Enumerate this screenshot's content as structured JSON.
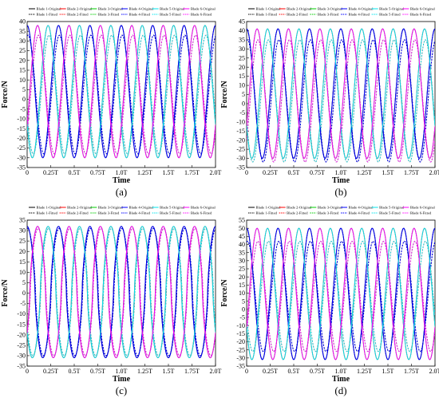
{
  "chart_data": [
    {
      "panel": "(a)",
      "type": "line",
      "xlabel": "Time",
      "ylabel": "Force/N",
      "ylim": [
        -35,
        40
      ],
      "yticks": [
        -35,
        -30,
        -25,
        -20,
        -15,
        -10,
        -5,
        0,
        5,
        10,
        15,
        20,
        25,
        30,
        35,
        40
      ],
      "xticks": [
        "0",
        "0.25T",
        "0.5T",
        "0.75T",
        "1.0T",
        "1.25T",
        "1.5T",
        "1.75T",
        "2.0T"
      ],
      "xlim": [
        0,
        2
      ],
      "curve_model": {
        "cycles_per_T": 3,
        "blade_phase_step_deg": 120,
        "wave_shape": "sine"
      },
      "series": [
        {
          "name": "Blade 1-Original",
          "style": "solid",
          "color": "#000000",
          "amp_max": 38,
          "amp_min": -30,
          "phase_deg": 90
        },
        {
          "name": "Blade 2-Original",
          "style": "solid",
          "color": "#ff0000",
          "amp_max": 38,
          "amp_min": -30,
          "phase_deg": 210
        },
        {
          "name": "Blade 3-Original",
          "style": "solid",
          "color": "#00cc00",
          "amp_max": 38,
          "amp_min": -30,
          "phase_deg": 330
        },
        {
          "name": "Blade 4-Original",
          "style": "solid",
          "color": "#0000ff",
          "amp_max": 38,
          "amp_min": -30,
          "phase_deg": 450
        },
        {
          "name": "Blade 5-Original",
          "style": "solid",
          "color": "#00e5ee",
          "amp_max": 38,
          "amp_min": -30,
          "phase_deg": 570
        },
        {
          "name": "Blade 6-Original",
          "style": "solid",
          "color": "#ff00ff",
          "amp_max": 38,
          "amp_min": -30,
          "phase_deg": 690
        },
        {
          "name": "Blade 1-Fitted",
          "style": "dashed",
          "color": "#000000",
          "amp_max": 33,
          "amp_min": -28,
          "phase_deg": 80
        },
        {
          "name": "Blade 2-Fitted",
          "style": "dashed",
          "color": "#ff0000",
          "amp_max": 33,
          "amp_min": -28,
          "phase_deg": 200
        },
        {
          "name": "Blade 3-Fitted",
          "style": "dashed",
          "color": "#00cc00",
          "amp_max": 33,
          "amp_min": -28,
          "phase_deg": 320
        },
        {
          "name": "Blade 4-Fitted",
          "style": "dashed",
          "color": "#0000ff",
          "amp_max": 33,
          "amp_min": -28,
          "phase_deg": 440
        },
        {
          "name": "Blade 5-Fitted",
          "style": "dashed",
          "color": "#00e5ee",
          "amp_max": 33,
          "amp_min": -28,
          "phase_deg": 560
        },
        {
          "name": "Blade 6-Fitted",
          "style": "dashed",
          "color": "#ff00ff",
          "amp_max": 33,
          "amp_min": -28,
          "phase_deg": 680
        }
      ]
    },
    {
      "panel": "(b)",
      "type": "line",
      "xlabel": "Time",
      "ylabel": "Force/N",
      "ylim": [
        -35,
        45
      ],
      "yticks": [
        -35,
        -30,
        -25,
        -20,
        -15,
        -10,
        -5,
        0,
        5,
        10,
        15,
        20,
        25,
        30,
        35,
        40,
        45
      ],
      "xticks": [
        "0",
        "0.25T",
        "0.5T",
        "0.75T",
        "1.0T",
        "1.25T",
        "1.5T",
        "1.75T",
        "2.0T"
      ],
      "xlim": [
        0,
        2
      ],
      "curve_model": {
        "cycles_per_T": 3,
        "blade_phase_step_deg": 120,
        "wave_shape": "sine"
      },
      "series": [
        {
          "name": "Blade 1-Original",
          "style": "solid",
          "color": "#000000",
          "amp_max": 41,
          "amp_min": -30,
          "phase_deg": 90
        },
        {
          "name": "Blade 2-Original",
          "style": "solid",
          "color": "#ff0000",
          "amp_max": 41,
          "amp_min": -30,
          "phase_deg": 210
        },
        {
          "name": "Blade 3-Original",
          "style": "solid",
          "color": "#00cc00",
          "amp_max": 41,
          "amp_min": -30,
          "phase_deg": 330
        },
        {
          "name": "Blade 4-Original",
          "style": "solid",
          "color": "#0000ff",
          "amp_max": 41,
          "amp_min": -30,
          "phase_deg": 450
        },
        {
          "name": "Blade 5-Original",
          "style": "solid",
          "color": "#00e5ee",
          "amp_max": 41,
          "amp_min": -30,
          "phase_deg": 570
        },
        {
          "name": "Blade 6-Original",
          "style": "solid",
          "color": "#ff00ff",
          "amp_max": 41,
          "amp_min": -30,
          "phase_deg": 690
        },
        {
          "name": "Blade 1-Fitted",
          "style": "dashed",
          "color": "#000000",
          "amp_max": 35,
          "amp_min": -32,
          "phase_deg": 80
        },
        {
          "name": "Blade 2-Fitted",
          "style": "dashed",
          "color": "#ff0000",
          "amp_max": 35,
          "amp_min": -32,
          "phase_deg": 200
        },
        {
          "name": "Blade 3-Fitted",
          "style": "dashed",
          "color": "#00cc00",
          "amp_max": 35,
          "amp_min": -32,
          "phase_deg": 320
        },
        {
          "name": "Blade 4-Fitted",
          "style": "dashed",
          "color": "#0000ff",
          "amp_max": 35,
          "amp_min": -32,
          "phase_deg": 440
        },
        {
          "name": "Blade 5-Fitted",
          "style": "dashed",
          "color": "#00e5ee",
          "amp_max": 35,
          "amp_min": -32,
          "phase_deg": 560
        },
        {
          "name": "Blade 6-Fitted",
          "style": "dashed",
          "color": "#ff00ff",
          "amp_max": 35,
          "amp_min": -32,
          "phase_deg": 680
        }
      ]
    },
    {
      "panel": "(c)",
      "type": "line",
      "xlabel": "Time",
      "ylabel": "Force/N",
      "ylim": [
        -35,
        35
      ],
      "yticks": [
        -35,
        -30,
        -25,
        -20,
        -15,
        -10,
        -5,
        0,
        5,
        10,
        15,
        20,
        25,
        30,
        35
      ],
      "xticks": [
        "0",
        "0.25T",
        "0.5T",
        "0.75T",
        "1.0T",
        "1.25T",
        "1.5T",
        "1.75T",
        "2.0T"
      ],
      "xlim": [
        0,
        2
      ],
      "curve_model": {
        "cycles_per_T": 3,
        "blade_phase_step_deg": 120,
        "wave_shape": "flattened"
      },
      "series": [
        {
          "name": "Blade 1-Original",
          "style": "solid",
          "color": "#000000",
          "amp_max": 32,
          "amp_min": -31,
          "phase_deg": 90
        },
        {
          "name": "Blade 2-Original",
          "style": "solid",
          "color": "#ff0000",
          "amp_max": 32,
          "amp_min": -31,
          "phase_deg": 210
        },
        {
          "name": "Blade 3-Original",
          "style": "solid",
          "color": "#00cc00",
          "amp_max": 32,
          "amp_min": -31,
          "phase_deg": 330
        },
        {
          "name": "Blade 4-Original",
          "style": "solid",
          "color": "#0000ff",
          "amp_max": 32,
          "amp_min": -31,
          "phase_deg": 450
        },
        {
          "name": "Blade 5-Original",
          "style": "solid",
          "color": "#00e5ee",
          "amp_max": 32,
          "amp_min": -31,
          "phase_deg": 570
        },
        {
          "name": "Blade 6-Original",
          "style": "solid",
          "color": "#ff00ff",
          "amp_max": 32,
          "amp_min": -31,
          "phase_deg": 690
        },
        {
          "name": "Blade 1-Fitted",
          "style": "dashed",
          "color": "#000000",
          "amp_max": 31,
          "amp_min": -30,
          "phase_deg": 84
        },
        {
          "name": "Blade 2-Fitted",
          "style": "dashed",
          "color": "#ff0000",
          "amp_max": 31,
          "amp_min": -30,
          "phase_deg": 204
        },
        {
          "name": "Blade 3-Fitted",
          "style": "dashed",
          "color": "#00cc00",
          "amp_max": 31,
          "amp_min": -30,
          "phase_deg": 324
        },
        {
          "name": "Blade 4-Fitted",
          "style": "dashed",
          "color": "#0000ff",
          "amp_max": 31,
          "amp_min": -30,
          "phase_deg": 444
        },
        {
          "name": "Blade 5-Fitted",
          "style": "dashed",
          "color": "#00e5ee",
          "amp_max": 31,
          "amp_min": -30,
          "phase_deg": 564
        },
        {
          "name": "Blade 6-Fitted",
          "style": "dashed",
          "color": "#ff00ff",
          "amp_max": 31,
          "amp_min": -30,
          "phase_deg": 684
        }
      ]
    },
    {
      "panel": "(d)",
      "type": "line",
      "xlabel": "Time",
      "ylabel": "Force/N",
      "ylim": [
        -35,
        55
      ],
      "yticks": [
        -35,
        -30,
        -25,
        -20,
        -15,
        -10,
        -5,
        0,
        5,
        10,
        15,
        20,
        25,
        30,
        35,
        40,
        45,
        50,
        55
      ],
      "xticks": [
        "0",
        "0.25T",
        "0.5T",
        "0.75T",
        "1.0T",
        "1.25T",
        "1.5T",
        "1.75T",
        "2.0T"
      ],
      "xlim": [
        0,
        2
      ],
      "curve_model": {
        "cycles_per_T": 3,
        "blade_phase_step_deg": 120,
        "wave_shape": "sine"
      },
      "series": [
        {
          "name": "Blade 1-Original",
          "style": "solid",
          "color": "#000000",
          "amp_max": 50,
          "amp_min": -31,
          "phase_deg": 90
        },
        {
          "name": "Blade 2-Original",
          "style": "solid",
          "color": "#ff0000",
          "amp_max": 50,
          "amp_min": -31,
          "phase_deg": 210
        },
        {
          "name": "Blade 3-Original",
          "style": "solid",
          "color": "#00cc00",
          "amp_max": 50,
          "amp_min": -31,
          "phase_deg": 330
        },
        {
          "name": "Blade 4-Original",
          "style": "solid",
          "color": "#0000ff",
          "amp_max": 50,
          "amp_min": -31,
          "phase_deg": 450
        },
        {
          "name": "Blade 5-Original",
          "style": "solid",
          "color": "#00e5ee",
          "amp_max": 50,
          "amp_min": -31,
          "phase_deg": 570
        },
        {
          "name": "Blade 6-Original",
          "style": "solid",
          "color": "#ff00ff",
          "amp_max": 50,
          "amp_min": -31,
          "phase_deg": 690
        },
        {
          "name": "Blade 1-Fitted",
          "style": "dashed",
          "color": "#000000",
          "amp_max": 42,
          "amp_min": -26,
          "phase_deg": 80
        },
        {
          "name": "Blade 2-Fitted",
          "style": "dashed",
          "color": "#ff0000",
          "amp_max": 42,
          "amp_min": -26,
          "phase_deg": 200
        },
        {
          "name": "Blade 3-Fitted",
          "style": "dashed",
          "color": "#00cc00",
          "amp_max": 42,
          "amp_min": -26,
          "phase_deg": 320
        },
        {
          "name": "Blade 4-Fitted",
          "style": "dashed",
          "color": "#0000ff",
          "amp_max": 42,
          "amp_min": -26,
          "phase_deg": 440
        },
        {
          "name": "Blade 5-Fitted",
          "style": "dashed",
          "color": "#00e5ee",
          "amp_max": 42,
          "amp_min": -26,
          "phase_deg": 560
        },
        {
          "name": "Blade 6-Fitted",
          "style": "dashed",
          "color": "#ff00ff",
          "amp_max": 42,
          "amp_min": -26,
          "phase_deg": 680
        }
      ]
    }
  ]
}
